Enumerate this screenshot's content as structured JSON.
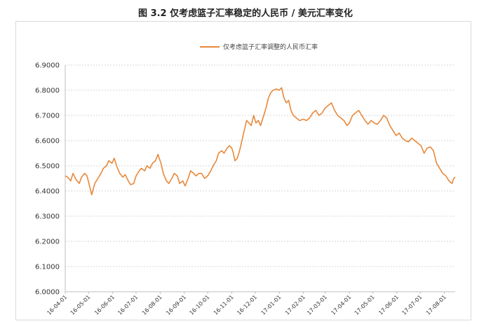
{
  "title": "图 3.2 仅考虑篮子汇率稳定的人民币 / 美元汇率变化",
  "chart_data": {
    "type": "line",
    "title": "图 3.2 仅考虑篮子汇率稳定的人民币 / 美元汇率变化",
    "xlabel": "",
    "ylabel": "",
    "ylim": [
      6.0,
      6.9
    ],
    "y_ticks": [
      "6.9000",
      "6.8000",
      "6.7000",
      "6.6000",
      "6.5000",
      "6.4000",
      "6.3000",
      "6.2000",
      "6.1000",
      "6.0000"
    ],
    "x_ticks": [
      "16-04-01",
      "16-05-01",
      "16-06-01",
      "16-07-01",
      "16-08-01",
      "16-09-01",
      "16-10-01",
      "16-11-01",
      "16-12-01",
      "17-01-01",
      "17-02-01",
      "17-03-01",
      "17-04-01",
      "17-05-01",
      "17-06-01",
      "17-07-01",
      "17-08-01"
    ],
    "grid": "horizontal dashed",
    "legend_position": "top-center",
    "color": "#e8883a",
    "series": [
      {
        "name": "仅考虑篮子汇率调整的人民币汇率",
        "points": [
          [
            "16-04-01",
            6.46
          ],
          [
            "16-04-04",
            6.455
          ],
          [
            "16-04-08",
            6.44
          ],
          [
            "16-04-11",
            6.47
          ],
          [
            "16-04-15",
            6.445
          ],
          [
            "16-04-19",
            6.43
          ],
          [
            "16-04-22",
            6.455
          ],
          [
            "16-04-26",
            6.47
          ],
          [
            "16-04-29",
            6.46
          ],
          [
            "16-05-03",
            6.41
          ],
          [
            "16-05-05",
            6.385
          ],
          [
            "16-05-09",
            6.43
          ],
          [
            "16-05-13",
            6.45
          ],
          [
            "16-05-17",
            6.47
          ],
          [
            "16-05-20",
            6.49
          ],
          [
            "16-05-24",
            6.5
          ],
          [
            "16-05-27",
            6.52
          ],
          [
            "16-05-31",
            6.51
          ],
          [
            "16-06-03",
            6.53
          ],
          [
            "16-06-06",
            6.5
          ],
          [
            "16-06-10",
            6.47
          ],
          [
            "16-06-14",
            6.455
          ],
          [
            "16-06-17",
            6.465
          ],
          [
            "16-06-21",
            6.44
          ],
          [
            "16-06-24",
            6.425
          ],
          [
            "16-06-28",
            6.43
          ],
          [
            "16-07-01",
            6.46
          ],
          [
            "16-07-05",
            6.48
          ],
          [
            "16-07-08",
            6.49
          ],
          [
            "16-07-12",
            6.48
          ],
          [
            "16-07-15",
            6.5
          ],
          [
            "16-07-19",
            6.49
          ],
          [
            "16-07-22",
            6.51
          ],
          [
            "16-07-26",
            6.52
          ],
          [
            "16-07-29",
            6.545
          ],
          [
            "16-08-02",
            6.51
          ],
          [
            "16-08-05",
            6.47
          ],
          [
            "16-08-09",
            6.44
          ],
          [
            "16-08-12",
            6.43
          ],
          [
            "16-08-16",
            6.45
          ],
          [
            "16-08-19",
            6.47
          ],
          [
            "16-08-23",
            6.46
          ],
          [
            "16-08-26",
            6.43
          ],
          [
            "16-08-30",
            6.44
          ],
          [
            "16-09-02",
            6.42
          ],
          [
            "16-09-06",
            6.45
          ],
          [
            "16-09-09",
            6.48
          ],
          [
            "16-09-13",
            6.47
          ],
          [
            "16-09-16",
            6.46
          ],
          [
            "16-09-20",
            6.47
          ],
          [
            "16-09-23",
            6.47
          ],
          [
            "16-09-27",
            6.45
          ],
          [
            "16-10-01",
            6.46
          ],
          [
            "16-10-05",
            6.48
          ],
          [
            "16-10-08",
            6.5
          ],
          [
            "16-10-12",
            6.52
          ],
          [
            "16-10-15",
            6.55
          ],
          [
            "16-10-19",
            6.56
          ],
          [
            "16-10-22",
            6.55
          ],
          [
            "16-10-26",
            6.57
          ],
          [
            "16-10-29",
            6.58
          ],
          [
            "16-11-01",
            6.57
          ],
          [
            "16-11-03",
            6.55
          ],
          [
            "16-11-05",
            6.52
          ],
          [
            "16-11-08",
            6.53
          ],
          [
            "16-11-11",
            6.56
          ],
          [
            "16-11-14",
            6.6
          ],
          [
            "16-11-17",
            6.64
          ],
          [
            "16-11-20",
            6.68
          ],
          [
            "16-11-23",
            6.67
          ],
          [
            "16-11-26",
            6.66
          ],
          [
            "16-11-29",
            6.7
          ],
          [
            "16-12-02",
            6.67
          ],
          [
            "16-12-05",
            6.68
          ],
          [
            "16-12-08",
            6.66
          ],
          [
            "16-12-12",
            6.7
          ],
          [
            "16-12-15",
            6.73
          ],
          [
            "16-12-18",
            6.77
          ],
          [
            "16-12-21",
            6.79
          ],
          [
            "16-12-24",
            6.8
          ],
          [
            "16-12-28",
            6.805
          ],
          [
            "17-01-01",
            6.8
          ],
          [
            "17-01-04",
            6.81
          ],
          [
            "17-01-07",
            6.77
          ],
          [
            "17-01-10",
            6.75
          ],
          [
            "17-01-13",
            6.76
          ],
          [
            "17-01-16",
            6.72
          ],
          [
            "17-01-19",
            6.7
          ],
          [
            "17-01-23",
            6.69
          ],
          [
            "17-01-27",
            6.68
          ],
          [
            "17-02-01",
            6.685
          ],
          [
            "17-02-05",
            6.68
          ],
          [
            "17-02-09",
            6.69
          ],
          [
            "17-02-13",
            6.71
          ],
          [
            "17-02-17",
            6.72
          ],
          [
            "17-02-21",
            6.7
          ],
          [
            "17-02-25",
            6.71
          ],
          [
            "17-03-01",
            6.73
          ],
          [
            "17-03-05",
            6.74
          ],
          [
            "17-03-09",
            6.75
          ],
          [
            "17-03-13",
            6.72
          ],
          [
            "17-03-17",
            6.7
          ],
          [
            "17-03-21",
            6.69
          ],
          [
            "17-03-25",
            6.68
          ],
          [
            "17-03-29",
            6.66
          ],
          [
            "17-04-01",
            6.67
          ],
          [
            "17-04-05",
            6.7
          ],
          [
            "17-04-09",
            6.71
          ],
          [
            "17-04-13",
            6.72
          ],
          [
            "17-04-17",
            6.7
          ],
          [
            "17-04-21",
            6.68
          ],
          [
            "17-04-25",
            6.665
          ],
          [
            "17-04-29",
            6.68
          ],
          [
            "17-05-03",
            6.67
          ],
          [
            "17-05-07",
            6.665
          ],
          [
            "17-05-11",
            6.68
          ],
          [
            "17-05-15",
            6.7
          ],
          [
            "17-05-19",
            6.69
          ],
          [
            "17-05-23",
            6.66
          ],
          [
            "17-05-27",
            6.64
          ],
          [
            "17-05-31",
            6.62
          ],
          [
            "17-06-04",
            6.63
          ],
          [
            "17-06-08",
            6.61
          ],
          [
            "17-06-12",
            6.6
          ],
          [
            "17-06-16",
            6.595
          ],
          [
            "17-06-20",
            6.61
          ],
          [
            "17-06-24",
            6.6
          ],
          [
            "17-06-28",
            6.59
          ],
          [
            "17-07-02",
            6.58
          ],
          [
            "17-07-06",
            6.55
          ],
          [
            "17-07-10",
            6.57
          ],
          [
            "17-07-14",
            6.575
          ],
          [
            "17-07-18",
            6.56
          ],
          [
            "17-07-22",
            6.51
          ],
          [
            "17-07-26",
            6.49
          ],
          [
            "17-07-30",
            6.47
          ],
          [
            "17-08-03",
            6.46
          ],
          [
            "17-08-07",
            6.44
          ],
          [
            "17-08-11",
            6.43
          ],
          [
            "17-08-13",
            6.45
          ],
          [
            "17-08-15",
            6.455
          ]
        ]
      }
    ]
  }
}
